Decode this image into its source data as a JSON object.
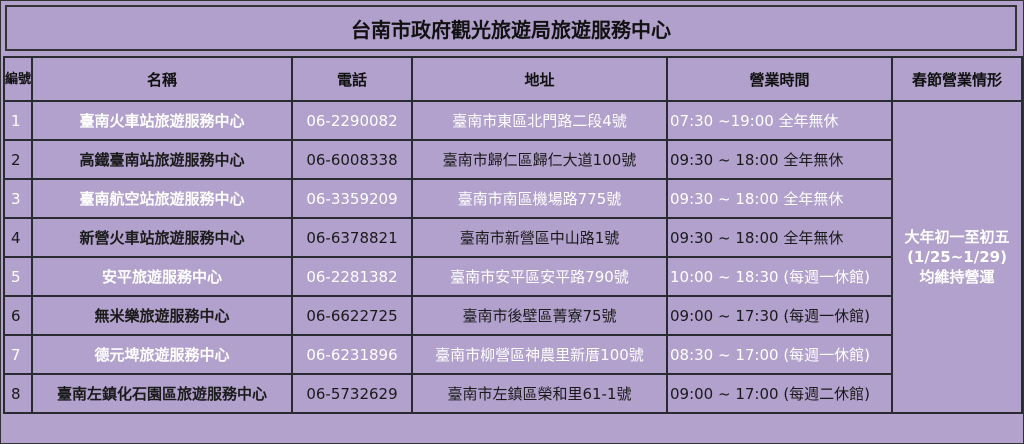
{
  "title": "台南市政府觀光旅遊局旅遊服務中心",
  "headers": {
    "num": "編號",
    "name": "名稱",
    "phone": "電話",
    "address": "地址",
    "hours": "營業時間",
    "spring": "春節營業情形"
  },
  "rows": [
    {
      "num": "1",
      "name": "臺南火車站旅遊服務中心",
      "phone": "06-2290082",
      "address": "臺南市東區北門路二段4號",
      "hours": "07:30 ~19:00 全年無休"
    },
    {
      "num": "2",
      "name": "高鐵臺南站旅遊服務中心",
      "phone": "06-6008338",
      "address": "臺南市歸仁區歸仁大道100號",
      "hours": "09:30 ~ 18:00 全年無休"
    },
    {
      "num": "3",
      "name": "臺南航空站旅遊服務中心",
      "phone": "06-3359209",
      "address": "臺南市南區機場路775號",
      "hours": "09:30 ~ 18:00 全年無休"
    },
    {
      "num": "4",
      "name": "新營火車站旅遊服務中心",
      "phone": "06-6378821",
      "address": "臺南市新營區中山路1號",
      "hours": "09:30 ~ 18:00 全年無休"
    },
    {
      "num": "5",
      "name": "安平旅遊服務中心",
      "phone": "06-2281382",
      "address": "臺南市安平區安平路790號",
      "hours": "10:00 ~ 18:30 (每週一休館)"
    },
    {
      "num": "6",
      "name": "無米樂旅遊服務中心",
      "phone": "06-6622725",
      "address": "臺南市後壁區菁寮75號",
      "hours": "09:00 ~ 17:30 (每週一休館)"
    },
    {
      "num": "7",
      "name": "德元埤旅遊服務中心",
      "phone": "06-6231896",
      "address": "臺南市柳營區神農里新厝100號",
      "hours": "08:30 ~ 17:00 (每週一休館)"
    },
    {
      "num": "8",
      "name": "臺南左鎮化石園區旅遊服務中心",
      "phone": "06-5732629",
      "address": "臺南市左鎮區榮和里61-1號",
      "hours": "09:00 ~ 17:00 (每週二休館)"
    }
  ],
  "spring": {
    "line1": "大年初一至初五",
    "line2": "(1/25~1/29)",
    "line3": "均維持營運"
  },
  "colors": {
    "cell_bg": "#b1a1cc",
    "border": "#2a2a33",
    "light_text": "#ffffff",
    "dark_text": "#1a1a1a"
  }
}
